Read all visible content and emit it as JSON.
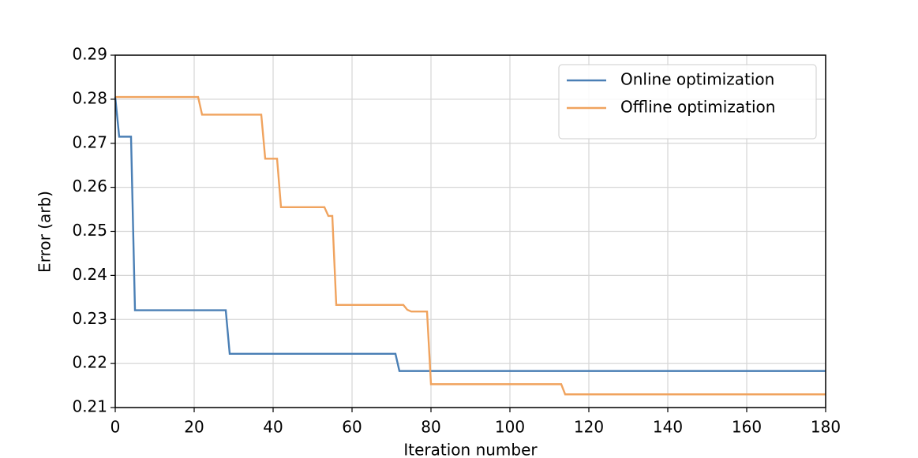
{
  "chart_data": {
    "type": "line",
    "x_label": "Iteration number",
    "y_label": "Error (arb)",
    "xlim": [
      0,
      180
    ],
    "xticks": [
      0,
      20,
      40,
      60,
      80,
      100,
      120,
      140,
      160,
      180
    ],
    "ylim": [
      0.21,
      0.29
    ],
    "yticks": [
      0.21,
      0.22,
      0.23,
      0.24,
      0.25,
      0.26,
      0.27,
      0.28,
      0.29
    ],
    "grid": true,
    "legend": "upper-right",
    "series": [
      {
        "name": "Online optimization",
        "color": "#4a7fb5",
        "x": [
          0,
          1,
          4,
          5,
          28,
          29,
          71,
          72,
          180
        ],
        "values": [
          0.2805,
          0.2715,
          0.2715,
          0.2321,
          0.2321,
          0.2222,
          0.2222,
          0.2183,
          0.2183
        ]
      },
      {
        "name": "Offline optimization",
        "color": "#f0a35e",
        "x": [
          0,
          21,
          22,
          37,
          38,
          41,
          42,
          53,
          54,
          55,
          56,
          73,
          74,
          75,
          79,
          80,
          113,
          114,
          180
        ],
        "values": [
          0.2805,
          0.2805,
          0.2765,
          0.2765,
          0.2665,
          0.2665,
          0.2555,
          0.2555,
          0.2535,
          0.2535,
          0.2333,
          0.2333,
          0.2322,
          0.2318,
          0.2318,
          0.2153,
          0.2153,
          0.213,
          0.213
        ]
      }
    ]
  }
}
